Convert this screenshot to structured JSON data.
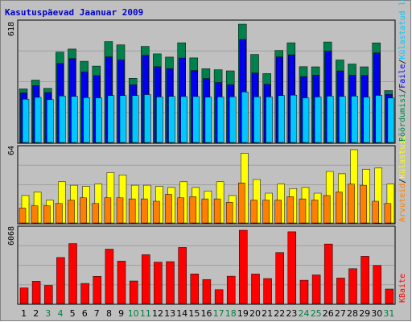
{
  "chart_data": {
    "type": "bar",
    "title": "Kasutuspäevad Jaanuar 2009",
    "title_color": "#0000cc",
    "categories": [
      "1",
      "2",
      "3",
      "4",
      "5",
      "6",
      "7",
      "8",
      "9",
      "10",
      "11",
      "12",
      "13",
      "14",
      "15",
      "16",
      "17",
      "18",
      "19",
      "20",
      "21",
      "22",
      "23",
      "24",
      "25",
      "26",
      "27",
      "28",
      "29",
      "30",
      "31"
    ],
    "weekend_days": [
      "3",
      "4",
      "10",
      "11",
      "17",
      "18",
      "24",
      "25",
      "31"
    ],
    "weekday_label_color": "#000000",
    "weekend_label_color": "#008040",
    "panels": [
      {
        "id": "top",
        "max_label": "618",
        "ylim": [
          0,
          618
        ],
        "series": [
          {
            "name": "Pöördumisi",
            "color": "#00804a",
            "values": [
              280,
              326,
              283,
              472,
              488,
              424,
              399,
              527,
              510,
              335,
              502,
              463,
              446,
              521,
              442,
              385,
              380,
              374,
              618,
              460,
              360,
              481,
              521,
              396,
              395,
              525,
              431,
              410,
              395,
              520,
              271
            ]
          },
          {
            "name": "Faile",
            "color": "#0000ee",
            "values": [
              260,
              297,
              261,
              413,
              438,
              368,
              349,
              447,
              431,
              302,
              455,
              396,
              385,
              441,
              376,
              334,
              313,
              302,
              538,
              363,
              304,
              447,
              458,
              344,
              352,
              477,
              374,
              351,
              350,
              468,
              251
            ]
          },
          {
            "name": "Külastatud lehti",
            "color": "#00c8ff",
            "values": [
              226,
              236,
              224,
              243,
              241,
              234,
              233,
              245,
              245,
              245,
              250,
              238,
              241,
              240,
              240,
              237,
              238,
              239,
              264,
              239,
              238,
              245,
              247,
              233,
              238,
              242,
              241,
              242,
              237,
              246,
              232
            ]
          }
        ]
      },
      {
        "id": "middle",
        "max_label": "64",
        "ylim": [
          0,
          64
        ],
        "series": [
          {
            "name": "Külastusi",
            "color": "#ffff00",
            "values": [
              24,
              27,
              20,
              36,
              33,
              32,
              34,
              44,
              42,
              33,
              33,
              32,
              31,
              36,
              31,
              28,
              36,
              24,
              61,
              38,
              26,
              34,
              30,
              31,
              26,
              45,
              43,
              64,
              47,
              48,
              34
            ]
          },
          {
            "name": "Arvuteid",
            "color": "#ff8000",
            "values": [
              13,
              15,
              15,
              17,
              20,
              22,
              17,
              22,
              22,
              21,
              21,
              19,
              25,
              22,
              23,
              21,
              21,
              18,
              35,
              20,
              20,
              20,
              23,
              21,
              20,
              24,
              27,
              34,
              33,
              19,
              17
            ]
          }
        ]
      },
      {
        "id": "bottom",
        "max_label": "6068",
        "ylim": [
          0,
          6068
        ],
        "series": [
          {
            "name": "KBaite",
            "color": "#ff0000",
            "values": [
              1290,
              1840,
              1500,
              3810,
              4960,
              1660,
              2250,
              4500,
              3510,
              1870,
              4040,
              3430,
              3470,
              4640,
              2450,
              1990,
              1150,
              2260,
              6068,
              2440,
              2070,
              4220,
              5940,
              1930,
              2370,
              4930,
              2110,
              2880,
              3910,
              3150,
              1200
            ]
          }
        ]
      }
    ],
    "legend_right": [
      {
        "text": "Pöördumisi",
        "color": "#00804a"
      },
      {
        "text": "/",
        "color": "#000000"
      },
      {
        "text": "Faile",
        "color": "#0000ee"
      },
      {
        "text": "/",
        "color": "#000000"
      },
      {
        "text": "Külastatud lehti",
        "color": "#00c8ff"
      }
    ],
    "legend_right_middle": [
      {
        "text": "Arvuteid",
        "color": "#ff8000"
      },
      {
        "text": "/",
        "color": "#000000"
      },
      {
        "text": "Külastusi",
        "color": "#ffff00"
      }
    ],
    "legend_right_bottom": [
      {
        "text": "KBaite",
        "color": "#ff0000"
      }
    ],
    "grid": true
  }
}
